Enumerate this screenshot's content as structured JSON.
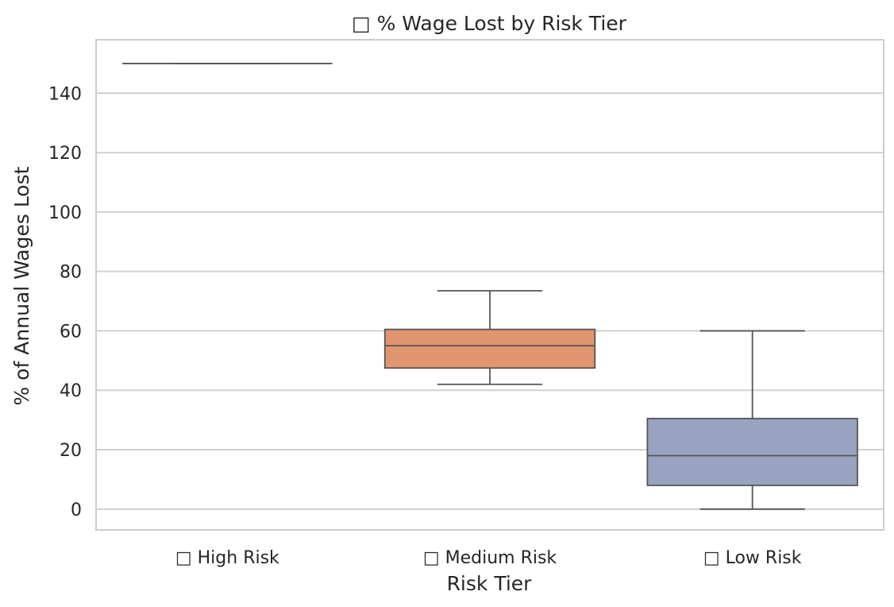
{
  "chart_data": {
    "type": "box",
    "title": "□ % Wage Lost by Risk Tier",
    "xlabel": "Risk Tier",
    "ylabel": "% of Annual Wages Lost",
    "ylim": [
      -7,
      158
    ],
    "yticks": [
      0,
      20,
      40,
      60,
      80,
      100,
      120,
      140
    ],
    "grid": true,
    "categories": [
      "□ High Risk",
      "□ Medium Risk",
      "□ Low Risk"
    ],
    "boxes": [
      {
        "category": "□ High Risk",
        "whisker_low": 150,
        "q1": 150,
        "median": 150,
        "q3": 150,
        "whisker_high": 150,
        "color": "#66c2a5"
      },
      {
        "category": "□ Medium Risk",
        "whisker_low": 42,
        "q1": 47.5,
        "median": 55,
        "q3": 60.5,
        "whisker_high": 73.5,
        "color": "#e1956f"
      },
      {
        "category": "□ Low Risk",
        "whisker_low": 0,
        "q1": 8,
        "median": 18,
        "q3": 30.5,
        "whisker_high": 60,
        "color": "#98a3c1"
      }
    ]
  },
  "colors": {
    "grid": "#d0d0d0",
    "frame": "#cccccc",
    "line": "#555555"
  }
}
